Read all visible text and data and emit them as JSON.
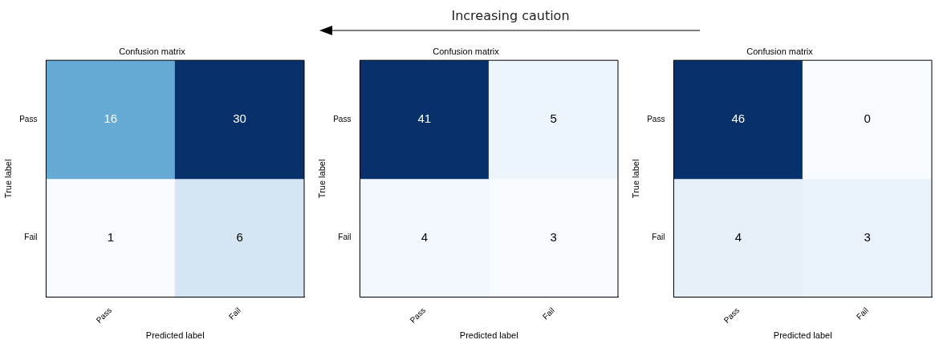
{
  "chart_data": [
    {
      "type": "other",
      "annotations": [
        "Increasing caution"
      ]
    },
    {
      "type": "heatmap",
      "title": "Confusion matrix",
      "xlabel": "Predicted label",
      "ylabel": "True label",
      "categories": [
        "Pass",
        "Fail"
      ],
      "y_categories": [
        "Pass",
        "Fail"
      ],
      "cells": [
        [
          16,
          30
        ],
        [
          1,
          6
        ]
      ],
      "data_labels": true
    },
    {
      "type": "heatmap",
      "title": "Confusion matrix",
      "xlabel": "Predicted label",
      "ylabel": "True label",
      "categories": [
        "Pass",
        "Fail"
      ],
      "y_categories": [
        "Pass",
        "Fail"
      ],
      "cells": [
        [
          41,
          5
        ],
        [
          4,
          3
        ]
      ],
      "data_labels": true
    },
    {
      "type": "heatmap",
      "title": "Confusion matrix",
      "xlabel": "Predicted label",
      "ylabel": "True label",
      "categories": [
        "Pass",
        "Fail"
      ],
      "y_categories": [
        "Pass",
        "Fail"
      ],
      "cells": [
        [
          46,
          0
        ],
        [
          4,
          3
        ]
      ],
      "data_labels": true
    }
  ]
}
